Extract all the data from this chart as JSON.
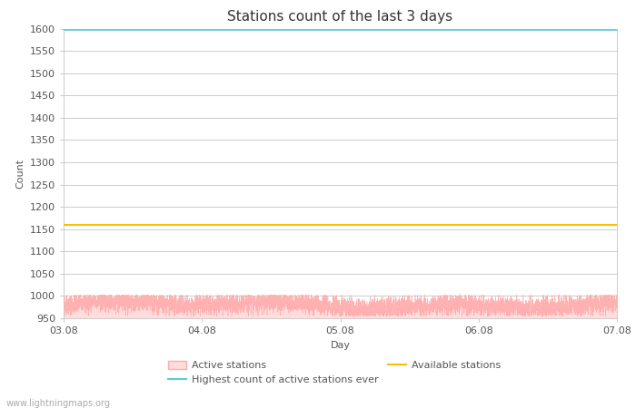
{
  "title": "Stations count of the last 3 days",
  "xlabel": "Day",
  "ylabel": "Count",
  "ylim": [
    950,
    1600
  ],
  "yticks": [
    950,
    1000,
    1050,
    1100,
    1150,
    1200,
    1250,
    1300,
    1350,
    1400,
    1450,
    1500,
    1550,
    1600
  ],
  "xlim_days": [
    0,
    4
  ],
  "xtick_positions": [
    0,
    1,
    2,
    3,
    4
  ],
  "xtick_labels": [
    "03.08",
    "04.08",
    "05.08",
    "06.08",
    "07.08"
  ],
  "highest_ever_value": 1597,
  "highest_ever_color": "#55ccdd",
  "available_stations_value": 1160,
  "available_stations_color": "#ffbb00",
  "active_stations_fill_color": "#ffdddd",
  "active_stations_line_color": "#ffaaaa",
  "active_stations_mean": 980,
  "active_stations_noise": 12,
  "background_color": "#ffffff",
  "grid_color": "#cccccc",
  "text_color": "#555555",
  "watermark": "www.lightningmaps.org",
  "watermark_color": "#aaaaaa",
  "legend_labels": [
    "Active stations",
    "Highest count of active stations ever",
    "Available stations"
  ],
  "title_fontsize": 11,
  "axis_label_fontsize": 8,
  "tick_fontsize": 8,
  "legend_fontsize": 8
}
